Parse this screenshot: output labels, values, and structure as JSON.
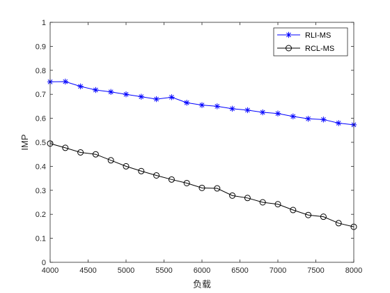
{
  "chart_data": {
    "type": "line",
    "xlabel": "负载",
    "ylabel": "IMP",
    "xlim": [
      4000,
      8000
    ],
    "ylim": [
      0,
      1
    ],
    "xticks": [
      4000,
      4500,
      5000,
      5500,
      6000,
      6500,
      7000,
      7500,
      8000
    ],
    "yticks": [
      0,
      0.1,
      0.2,
      0.3,
      0.4,
      0.5,
      0.6,
      0.7,
      0.8,
      0.9,
      1
    ],
    "x": [
      4000,
      4200,
      4400,
      4600,
      4800,
      5000,
      5200,
      5400,
      5600,
      5800,
      6000,
      6200,
      6400,
      6600,
      6800,
      7000,
      7200,
      7400,
      7600,
      7800,
      8000
    ],
    "grid": false,
    "legend": "top-right",
    "series": [
      {
        "name": "RLI-MS",
        "color": "#0000ff",
        "marker": "asterisk",
        "values": [
          0.752,
          0.753,
          0.733,
          0.718,
          0.71,
          0.7,
          0.69,
          0.68,
          0.688,
          0.665,
          0.655,
          0.65,
          0.64,
          0.634,
          0.625,
          0.62,
          0.608,
          0.598,
          0.595,
          0.58,
          0.573
        ]
      },
      {
        "name": "RCL-MS",
        "color": "#000000",
        "marker": "circle",
        "values": [
          0.495,
          0.477,
          0.458,
          0.45,
          0.425,
          0.4,
          0.38,
          0.362,
          0.345,
          0.33,
          0.31,
          0.308,
          0.278,
          0.268,
          0.25,
          0.242,
          0.218,
          0.197,
          0.19,
          0.163,
          0.148
        ]
      }
    ]
  }
}
